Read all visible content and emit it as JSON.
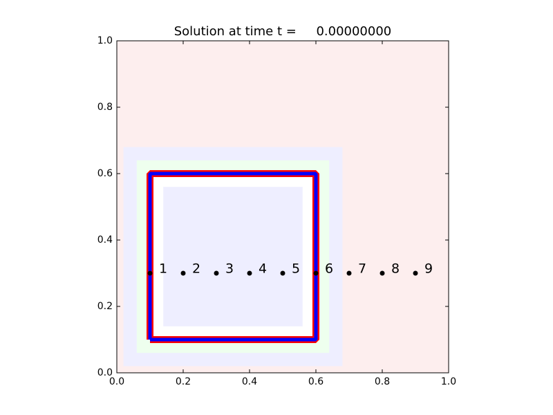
{
  "chart_data": {
    "type": "scatter",
    "title": "Solution at time t =     0.00000000",
    "x": [
      0.1,
      0.2,
      0.3,
      0.4,
      0.5,
      0.6,
      0.7,
      0.8,
      0.9
    ],
    "values": [
      0.3,
      0.3,
      0.3,
      0.3,
      0.3,
      0.3,
      0.3,
      0.3,
      0.3
    ],
    "point_labels": [
      "1",
      "2",
      "3",
      "4",
      "5",
      "6",
      "7",
      "8",
      "9"
    ],
    "color": "#000000",
    "background": "#fdeeee",
    "regions": [
      {
        "x": [
          0.02,
          0.68
        ],
        "y": [
          0.02,
          0.68
        ],
        "color": "#eeeeff"
      },
      {
        "x": [
          0.06,
          0.64
        ],
        "y": [
          0.06,
          0.64
        ],
        "color": "#eeffee"
      },
      {
        "x": [
          0.1,
          0.6
        ],
        "y": [
          0.1,
          0.6
        ],
        "color": "#ffffff"
      },
      {
        "x": [
          0.14,
          0.56
        ],
        "y": [
          0.14,
          0.56
        ],
        "color": "#eeeeff"
      }
    ],
    "boundary": {
      "x": [
        0.1,
        0.6,
        0.6,
        0.1,
        0.1
      ],
      "y": [
        0.1,
        0.1,
        0.6,
        0.6,
        0.1
      ],
      "color": "#0000ff",
      "edge_color": "#ff0000"
    },
    "xlim": [
      0,
      1
    ],
    "ylim": [
      0,
      1
    ],
    "xticks": [
      {
        "value": 0,
        "label": "0.0"
      },
      {
        "value": 0.2,
        "label": "0.2"
      },
      {
        "value": 0.4,
        "label": "0.4"
      },
      {
        "value": 0.6,
        "label": "0.6"
      },
      {
        "value": 0.8,
        "label": "0.8"
      },
      {
        "value": 1,
        "label": "1.0"
      }
    ],
    "yticks": [
      {
        "value": 0,
        "label": "0.0"
      },
      {
        "value": 0.2,
        "label": "0.2"
      },
      {
        "value": 0.4,
        "label": "0.4"
      },
      {
        "value": 0.6,
        "label": "0.6"
      },
      {
        "value": 0.8,
        "label": "0.8"
      },
      {
        "value": 1,
        "label": "1.0"
      }
    ]
  }
}
